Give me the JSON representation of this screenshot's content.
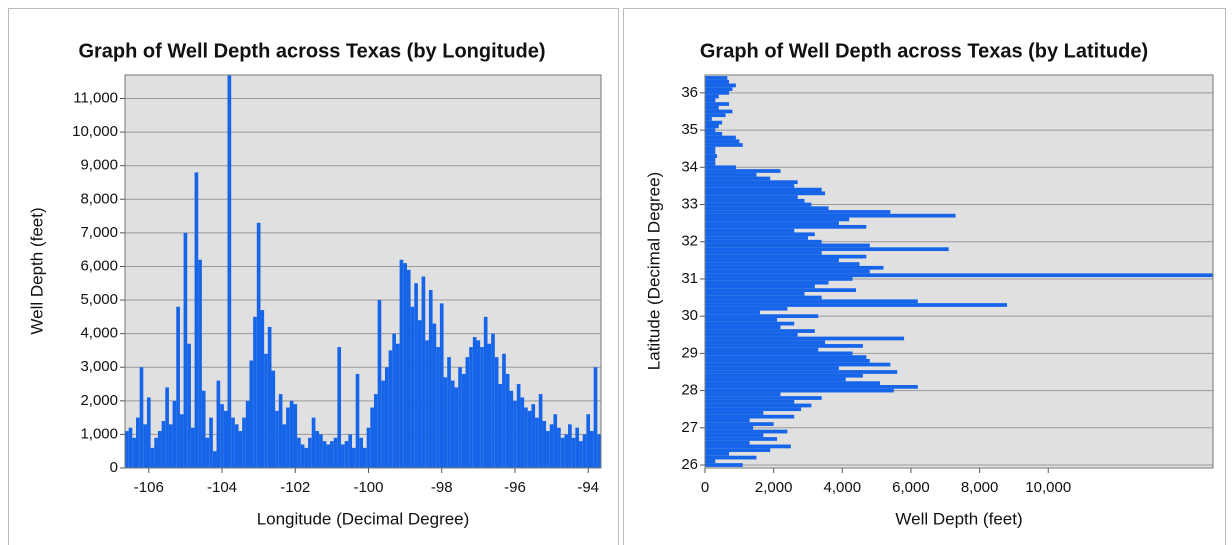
{
  "chart_data": [
    {
      "type": "bar",
      "title": "Graph of Well Depth across Texas (by Longitude)",
      "xlabel": "Longitude (Decimal Degree)",
      "ylabel": "Well Depth (feet)",
      "color": "#1664e8",
      "grid": "y",
      "xlim": [
        -106.65,
        -93.65
      ],
      "xticks": [
        -106,
        -104,
        -102,
        -100,
        -98,
        -96,
        -94
      ],
      "ylim": [
        0,
        11700
      ],
      "yticks": [
        0,
        {
          "value": 1000,
          "label": "1,000"
        },
        {
          "value": 2000,
          "label": "2,000"
        },
        {
          "value": 3000,
          "label": "3,000"
        },
        {
          "value": 4000,
          "label": "4,000"
        },
        {
          "value": 5000,
          "label": "5,000"
        },
        {
          "value": 6000,
          "label": "6,000"
        },
        {
          "value": 7000,
          "label": "7,000"
        },
        {
          "value": 8000,
          "label": "8,000"
        },
        {
          "value": 9000,
          "label": "9,000"
        },
        {
          "value": 10000,
          "label": "10,000"
        },
        {
          "value": 11000,
          "label": "11,000"
        }
      ],
      "x": [
        -106.6,
        -106.5,
        -106.4,
        -106.3,
        -106.2,
        -106.1,
        -106.0,
        -105.9,
        -105.8,
        -105.7,
        -105.6,
        -105.5,
        -105.4,
        -105.3,
        -105.2,
        -105.1,
        -105.0,
        -104.9,
        -104.8,
        -104.7,
        -104.6,
        -104.5,
        -104.4,
        -104.3,
        -104.2,
        -104.1,
        -104.0,
        -103.9,
        -103.8,
        -103.7,
        -103.6,
        -103.5,
        -103.4,
        -103.3,
        -103.2,
        -103.1,
        -103.0,
        -102.9,
        -102.8,
        -102.7,
        -102.6,
        -102.5,
        -102.4,
        -102.3,
        -102.2,
        -102.1,
        -102.0,
        -101.9,
        -101.8,
        -101.7,
        -101.6,
        -101.5,
        -101.4,
        -101.3,
        -101.2,
        -101.1,
        -101.0,
        -100.9,
        -100.8,
        -100.7,
        -100.6,
        -100.5,
        -100.4,
        -100.3,
        -100.2,
        -100.1,
        -100.0,
        -99.9,
        -99.8,
        -99.7,
        -99.6,
        -99.5,
        -99.4,
        -99.3,
        -99.2,
        -99.1,
        -99.0,
        -98.9,
        -98.8,
        -98.7,
        -98.6,
        -98.5,
        -98.4,
        -98.3,
        -98.2,
        -98.1,
        -98.0,
        -97.9,
        -97.8,
        -97.7,
        -97.6,
        -97.5,
        -97.4,
        -97.3,
        -97.2,
        -97.1,
        -97.0,
        -96.9,
        -96.8,
        -96.7,
        -96.6,
        -96.5,
        -96.4,
        -96.3,
        -96.2,
        -96.1,
        -96.0,
        -95.9,
        -95.8,
        -95.7,
        -95.6,
        -95.5,
        -95.4,
        -95.3,
        -95.2,
        -95.1,
        -95.0,
        -94.9,
        -94.8,
        -94.7,
        -94.6,
        -94.5,
        -94.4,
        -94.3,
        -94.2,
        -94.1,
        -94.0,
        -93.9,
        -93.8,
        -93.7
      ],
      "values": [
        1100,
        1200,
        900,
        1500,
        3000,
        1300,
        2100,
        600,
        900,
        1100,
        1400,
        2400,
        1300,
        2000,
        4800,
        1600,
        7000,
        3700,
        1200,
        8800,
        6200,
        2300,
        900,
        1500,
        500,
        2600,
        1900,
        1700,
        11700,
        1500,
        1300,
        1100,
        1500,
        2000,
        3200,
        4500,
        7300,
        4700,
        3400,
        4200,
        2900,
        1700,
        2200,
        1300,
        1800,
        2000,
        1900,
        900,
        700,
        600,
        900,
        1500,
        1100,
        1000,
        800,
        700,
        800,
        900,
        3600,
        700,
        800,
        1000,
        600,
        2800,
        900,
        600,
        1200,
        1800,
        2200,
        5000,
        2600,
        3000,
        3500,
        4000,
        3700,
        6200,
        6100,
        5900,
        4800,
        5500,
        4400,
        5700,
        3800,
        5300,
        4300,
        3600,
        4900,
        2700,
        3300,
        2600,
        2400,
        3000,
        2800,
        3300,
        3600,
        3900,
        3800,
        3600,
        4500,
        3700,
        4000,
        3300,
        2500,
        3400,
        2800,
        2300,
        2000,
        2500,
        2100,
        1800,
        1700,
        1900,
        1500,
        2200,
        1400,
        1100,
        1300,
        1600,
        1200,
        900,
        1000,
        1300,
        900,
        1200,
        800,
        1000,
        1600,
        1100,
        3000,
        1000
      ]
    },
    {
      "type": "barh",
      "title": "Graph of Well Depth across Texas (by Latitude)",
      "xlabel": "Well Depth (feet)",
      "ylabel": "Latitude (Decimal Degree)",
      "color": "#1664e8",
      "grid": "y",
      "xlim": [
        0,
        14800
      ],
      "xticks": [
        0,
        {
          "value": 2000,
          "label": "2,000"
        },
        {
          "value": 4000,
          "label": "4,000"
        },
        {
          "value": 6000,
          "label": "6,000"
        },
        {
          "value": 8000,
          "label": "8,000"
        },
        {
          "value": 10000,
          "label": "10,000"
        }
      ],
      "ylim": [
        25.92,
        36.48
      ],
      "yticks": [
        26,
        27,
        28,
        29,
        30,
        31,
        32,
        33,
        34,
        35,
        36
      ],
      "y": [
        26.0,
        26.1,
        26.2,
        26.3,
        26.4,
        26.5,
        26.6,
        26.7,
        26.8,
        26.9,
        27.0,
        27.1,
        27.2,
        27.3,
        27.4,
        27.5,
        27.6,
        27.7,
        27.8,
        27.9,
        28.0,
        28.1,
        28.2,
        28.3,
        28.4,
        28.5,
        28.6,
        28.7,
        28.8,
        28.9,
        29.0,
        29.1,
        29.2,
        29.3,
        29.4,
        29.5,
        29.6,
        29.7,
        29.8,
        29.9,
        30.0,
        30.1,
        30.2,
        30.3,
        30.4,
        30.5,
        30.6,
        30.7,
        30.8,
        30.9,
        31.0,
        31.1,
        31.2,
        31.3,
        31.4,
        31.5,
        31.6,
        31.7,
        31.8,
        31.9,
        32.0,
        32.1,
        32.2,
        32.3,
        32.4,
        32.5,
        32.6,
        32.7,
        32.8,
        32.9,
        33.0,
        33.1,
        33.2,
        33.3,
        33.4,
        33.5,
        33.6,
        33.7,
        33.8,
        33.9,
        34.0,
        34.1,
        34.2,
        34.3,
        34.4,
        34.5,
        34.6,
        34.7,
        34.8,
        34.9,
        35.0,
        35.1,
        35.2,
        35.3,
        35.4,
        35.5,
        35.6,
        35.7,
        35.8,
        35.9,
        36.0,
        36.1,
        36.2,
        36.3,
        36.4
      ],
      "values": [
        1100,
        300,
        1500,
        700,
        1900,
        2500,
        1300,
        2100,
        1700,
        2400,
        1400,
        2000,
        1300,
        2600,
        1700,
        2800,
        3100,
        2600,
        3400,
        2200,
        5500,
        6200,
        5100,
        4100,
        4600,
        5600,
        3900,
        5400,
        4800,
        4700,
        4300,
        3300,
        4600,
        3500,
        5800,
        2700,
        3200,
        2200,
        2600,
        2100,
        3300,
        1600,
        2400,
        8800,
        6200,
        3400,
        2900,
        4400,
        3200,
        3600,
        4300,
        14800,
        4800,
        5200,
        4500,
        3900,
        4700,
        3400,
        7100,
        4800,
        3400,
        3000,
        3200,
        2600,
        4700,
        3900,
        4200,
        7300,
        5400,
        3600,
        3100,
        2900,
        2700,
        3500,
        3400,
        2600,
        2700,
        1900,
        1500,
        2200,
        900,
        300,
        300,
        350,
        300,
        300,
        1100,
        1000,
        900,
        500,
        300,
        400,
        500,
        200,
        600,
        800,
        400,
        700,
        300,
        400,
        700,
        800,
        900,
        700,
        650
      ]
    }
  ]
}
